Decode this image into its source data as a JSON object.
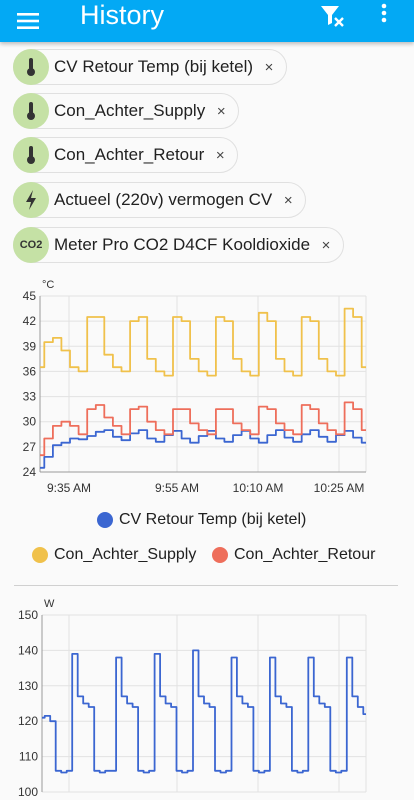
{
  "appbar": {
    "title": "History",
    "menu_icon": "menu-icon",
    "filter_icon": "filter-remove-icon",
    "more_icon": "more-vert-icon",
    "color": "#03a9f4"
  },
  "chips": [
    {
      "label": "CV Retour Temp (bij ketel)",
      "icon": "thermometer-icon"
    },
    {
      "label": "Con_Achter_Supply",
      "icon": "thermometer-icon"
    },
    {
      "label": "Con_Achter_Retour",
      "icon": "thermometer-icon"
    },
    {
      "label": "Actueel (220v) vermogen CV",
      "icon": "flash-icon"
    },
    {
      "label": "Meter Pro CO2 D4CF Kooldioxide",
      "icon": "co2-icon",
      "icon_text": "CO2"
    }
  ],
  "chip_remove_symbol": "×",
  "chart_data": [
    {
      "type": "line",
      "ylabel": "°C",
      "ylim": [
        24,
        45
      ],
      "yticks": [
        "45",
        "42",
        "39",
        "36",
        "33",
        "30",
        "27",
        "24"
      ],
      "xticks": [
        "9:35 AM",
        "9:55 AM",
        "10:10 AM",
        "10:25 AM"
      ],
      "grid": true,
      "legend_placement": "bottom",
      "series": [
        {
          "name": "CV Retour Temp (bij ketel)",
          "color": "#3b66d1",
          "values": [
            24.5,
            25.8,
            27.2,
            27.5,
            28.0,
            27.9,
            28.3,
            28.8,
            29.0,
            28.2,
            27.8,
            28.6,
            29.0,
            28.0,
            27.6,
            28.4,
            28.9,
            28.0,
            27.5,
            28.3,
            28.9,
            28.0,
            27.6,
            28.4,
            28.9,
            28.0,
            27.5,
            28.4,
            29.0,
            28.1,
            27.6,
            28.5,
            29.0,
            28.2,
            27.6,
            28.4,
            28.9,
            28.1,
            27.5
          ]
        },
        {
          "name": "Con_Achter_Supply",
          "color": "#f0c14b",
          "values": [
            36.5,
            39.5,
            40.0,
            38.5,
            36.5,
            36.0,
            42.5,
            42.5,
            38.0,
            36.5,
            36.0,
            42.0,
            42.5,
            37.5,
            36.0,
            35.5,
            42.5,
            42.0,
            37.5,
            36.0,
            35.5,
            42.5,
            42.0,
            37.5,
            36.0,
            35.5,
            43.0,
            42.0,
            37.5,
            36.0,
            35.5,
            42.5,
            42.0,
            37.5,
            36.0,
            35.5,
            43.5,
            42.5,
            36.5
          ]
        },
        {
          "name": "Con_Achter_Retour",
          "color": "#ee6e5b",
          "values": [
            26.0,
            28.0,
            29.5,
            30.0,
            29.5,
            28.5,
            31.5,
            32.0,
            30.5,
            29.5,
            28.5,
            31.5,
            31.8,
            30.0,
            29.0,
            28.5,
            31.5,
            31.5,
            29.8,
            29.0,
            28.5,
            31.5,
            31.5,
            29.8,
            29.0,
            28.5,
            31.8,
            31.5,
            29.8,
            29.0,
            28.5,
            32.0,
            31.5,
            29.8,
            29.0,
            28.5,
            32.3,
            31.5,
            29.0
          ]
        }
      ]
    },
    {
      "type": "line",
      "ylabel": "W",
      "ylim": [
        100,
        150
      ],
      "yticks": [
        "150",
        "140",
        "130",
        "120",
        "110",
        "100"
      ],
      "grid": true,
      "series": [
        {
          "name": "Actueel (220v) vermogen CV",
          "color": "#3b66d1",
          "values": [
            121,
            121.5,
            120,
            106,
            105.5,
            106,
            139,
            127,
            125,
            124,
            106,
            105.5,
            106,
            106,
            138,
            127,
            125,
            124,
            106,
            105.5,
            106,
            139,
            127,
            125,
            124,
            106,
            105.5,
            106,
            140,
            127,
            125,
            124,
            106,
            105.5,
            106,
            138,
            127,
            125,
            124,
            106,
            105.5,
            106,
            138,
            127,
            125,
            124,
            106,
            105.5,
            106,
            138,
            127,
            125,
            124,
            106,
            105.5,
            106,
            138,
            127,
            124,
            122
          ]
        }
      ]
    }
  ]
}
